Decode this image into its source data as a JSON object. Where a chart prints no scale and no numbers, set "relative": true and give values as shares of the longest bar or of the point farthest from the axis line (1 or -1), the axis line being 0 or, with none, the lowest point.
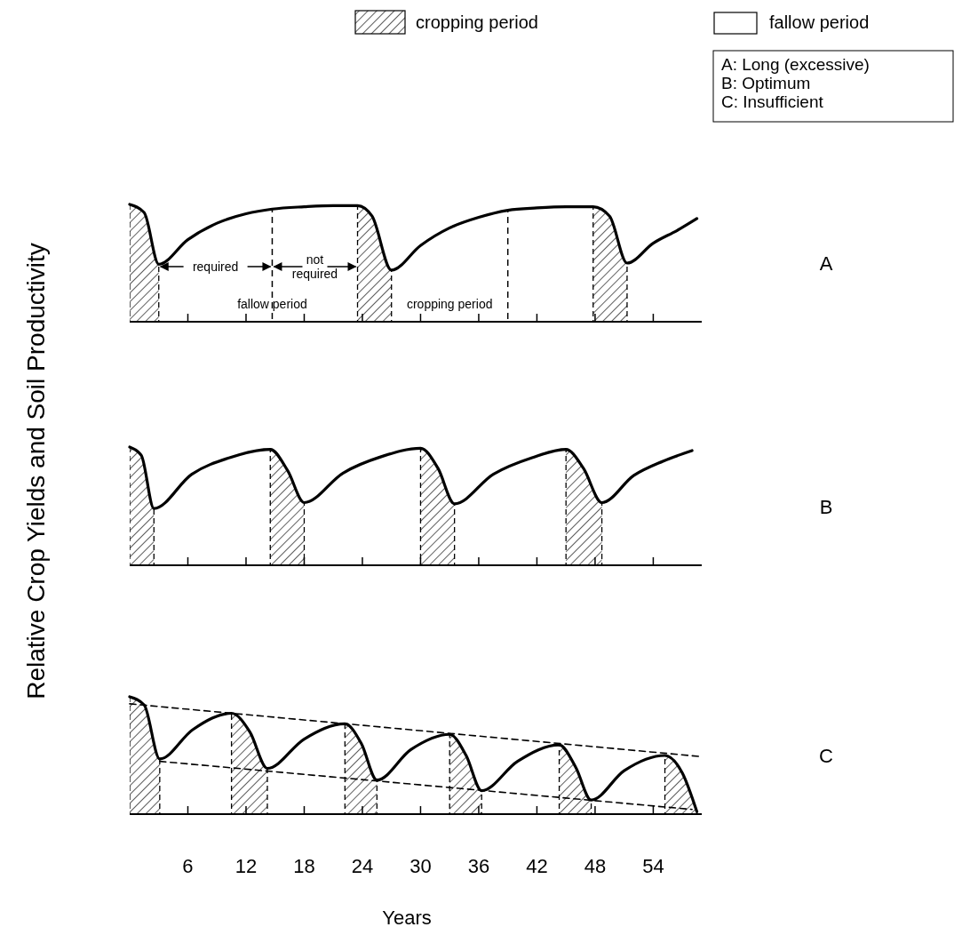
{
  "chart_data": [
    {
      "type": "line",
      "relative": true,
      "xlim": [
        0,
        59
      ],
      "xticks": [
        {
          "value": 6,
          "label": null
        },
        {
          "value": 12,
          "label": null
        },
        {
          "value": 18,
          "label": null
        },
        {
          "value": 24,
          "label": null
        },
        {
          "value": 30,
          "label": null
        },
        {
          "value": 36,
          "label": null
        },
        {
          "value": 42,
          "label": null
        },
        {
          "value": 48,
          "label": null
        },
        {
          "value": 54,
          "label": null
        }
      ],
      "tick_labels": false,
      "series": [
        {
          "color": "#000000",
          "x": [
            0,
            1.5,
            3,
            6,
            9,
            12,
            14.7,
            18,
            21,
            23.5,
            25,
            27,
            30,
            33,
            36,
            39,
            42,
            45,
            47.8,
            49.5,
            51.3,
            54,
            56.5,
            58.5
          ],
          "values": [
            1,
            0.93,
            0.49,
            0.7,
            0.84,
            0.92,
            0.96,
            0.98,
            0.99,
            0.99,
            0.9,
            0.44,
            0.65,
            0.8,
            0.89,
            0.95,
            0.97,
            0.98,
            0.98,
            0.9,
            0.5,
            0.67,
            0.78,
            0.88
          ]
        }
      ],
      "bands": [
        {
          "axis": "x",
          "from": 0,
          "to": 3
        },
        {
          "axis": "x",
          "from": 23.5,
          "to": 27
        },
        {
          "axis": "x",
          "from": 47.8,
          "to": 51.3
        }
      ],
      "ref_lines": [
        {
          "axis": "x",
          "value": 14.7,
          "line_style": "dashed"
        },
        {
          "axis": "x",
          "value": 39,
          "line_style": "dashed"
        }
      ],
      "annotations": [
        "A",
        "required",
        "not required",
        "fallow period",
        "cropping period",
        "cropping period",
        "fallow period",
        "A: Long (excessive)",
        "B: Optimum",
        "C: Insufficient"
      ]
    },
    {
      "type": "line",
      "annotations": [
        "B"
      ],
      "relative": true,
      "ylabel": "Relative Crop Yields and Soil Productivity",
      "xlim": [
        0,
        59
      ],
      "xticks": [
        {
          "value": 6,
          "label": null
        },
        {
          "value": 12,
          "label": null
        },
        {
          "value": 18,
          "label": null
        },
        {
          "value": 24,
          "label": null
        },
        {
          "value": 30,
          "label": null
        },
        {
          "value": 36,
          "label": null
        },
        {
          "value": 42,
          "label": null
        },
        {
          "value": 48,
          "label": null
        },
        {
          "value": 54,
          "label": null
        }
      ],
      "tick_labels": false,
      "series": [
        {
          "color": "#000000",
          "x": [
            0,
            1.2,
            2.5,
            6.4,
            10.3,
            14.5,
            16.3,
            18,
            22,
            26,
            30,
            31.8,
            33.5,
            37.5,
            41.5,
            45,
            46.8,
            48.7,
            52,
            55,
            58
          ],
          "values": [
            1,
            0.93,
            0.48,
            0.77,
            0.91,
            0.98,
            0.8,
            0.53,
            0.78,
            0.92,
            0.99,
            0.82,
            0.52,
            0.77,
            0.91,
            0.98,
            0.82,
            0.53,
            0.76,
            0.88,
            0.97
          ]
        }
      ],
      "bands": [
        {
          "axis": "x",
          "from": 0,
          "to": 2.5
        },
        {
          "axis": "x",
          "from": 14.5,
          "to": 18
        },
        {
          "axis": "x",
          "from": 30,
          "to": 33.5
        },
        {
          "axis": "x",
          "from": 45,
          "to": 48.7
        }
      ]
    },
    {
      "type": "line",
      "annotations": [
        "C"
      ],
      "relative": true,
      "xlabel": "Years",
      "xlim": [
        0,
        59
      ],
      "xticks": [
        6,
        12,
        18,
        24,
        30,
        36,
        42,
        48,
        54
      ],
      "tick_labels": "x",
      "series": [
        {
          "color": "#000000",
          "x": [
            0,
            1.5,
            3.1,
            6.5,
            10.5,
            12.4,
            14.2,
            18,
            22.2,
            23.9,
            25.5,
            29,
            33,
            34.7,
            36.3,
            40,
            44.3,
            46,
            47.6,
            51,
            55.2,
            57,
            58.5
          ],
          "values": [
            1,
            0.93,
            0.47,
            0.72,
            0.86,
            0.7,
            0.39,
            0.64,
            0.77,
            0.6,
            0.29,
            0.55,
            0.68,
            0.5,
            0.2,
            0.45,
            0.59,
            0.4,
            0.12,
            0.37,
            0.5,
            0.35,
            0.02
          ]
        },
        {
          "color": "#000000",
          "line_style": "dashed",
          "x": [
            0,
            59
          ],
          "values": [
            0.94,
            0.49
          ]
        },
        {
          "color": "#000000",
          "line_style": "dashed",
          "x": [
            3.1,
            58
          ],
          "values": [
            0.45,
            0.04
          ]
        }
      ],
      "bands": [
        {
          "axis": "x",
          "from": 0,
          "to": 3.1
        },
        {
          "axis": "x",
          "from": 10.5,
          "to": 14.2
        },
        {
          "axis": "x",
          "from": 22.2,
          "to": 25.5
        },
        {
          "axis": "x",
          "from": 33,
          "to": 36.3
        },
        {
          "axis": "x",
          "from": 44.3,
          "to": 47.6
        },
        {
          "axis": "x",
          "from": 55.2,
          "to": 58.5
        }
      ]
    }
  ]
}
